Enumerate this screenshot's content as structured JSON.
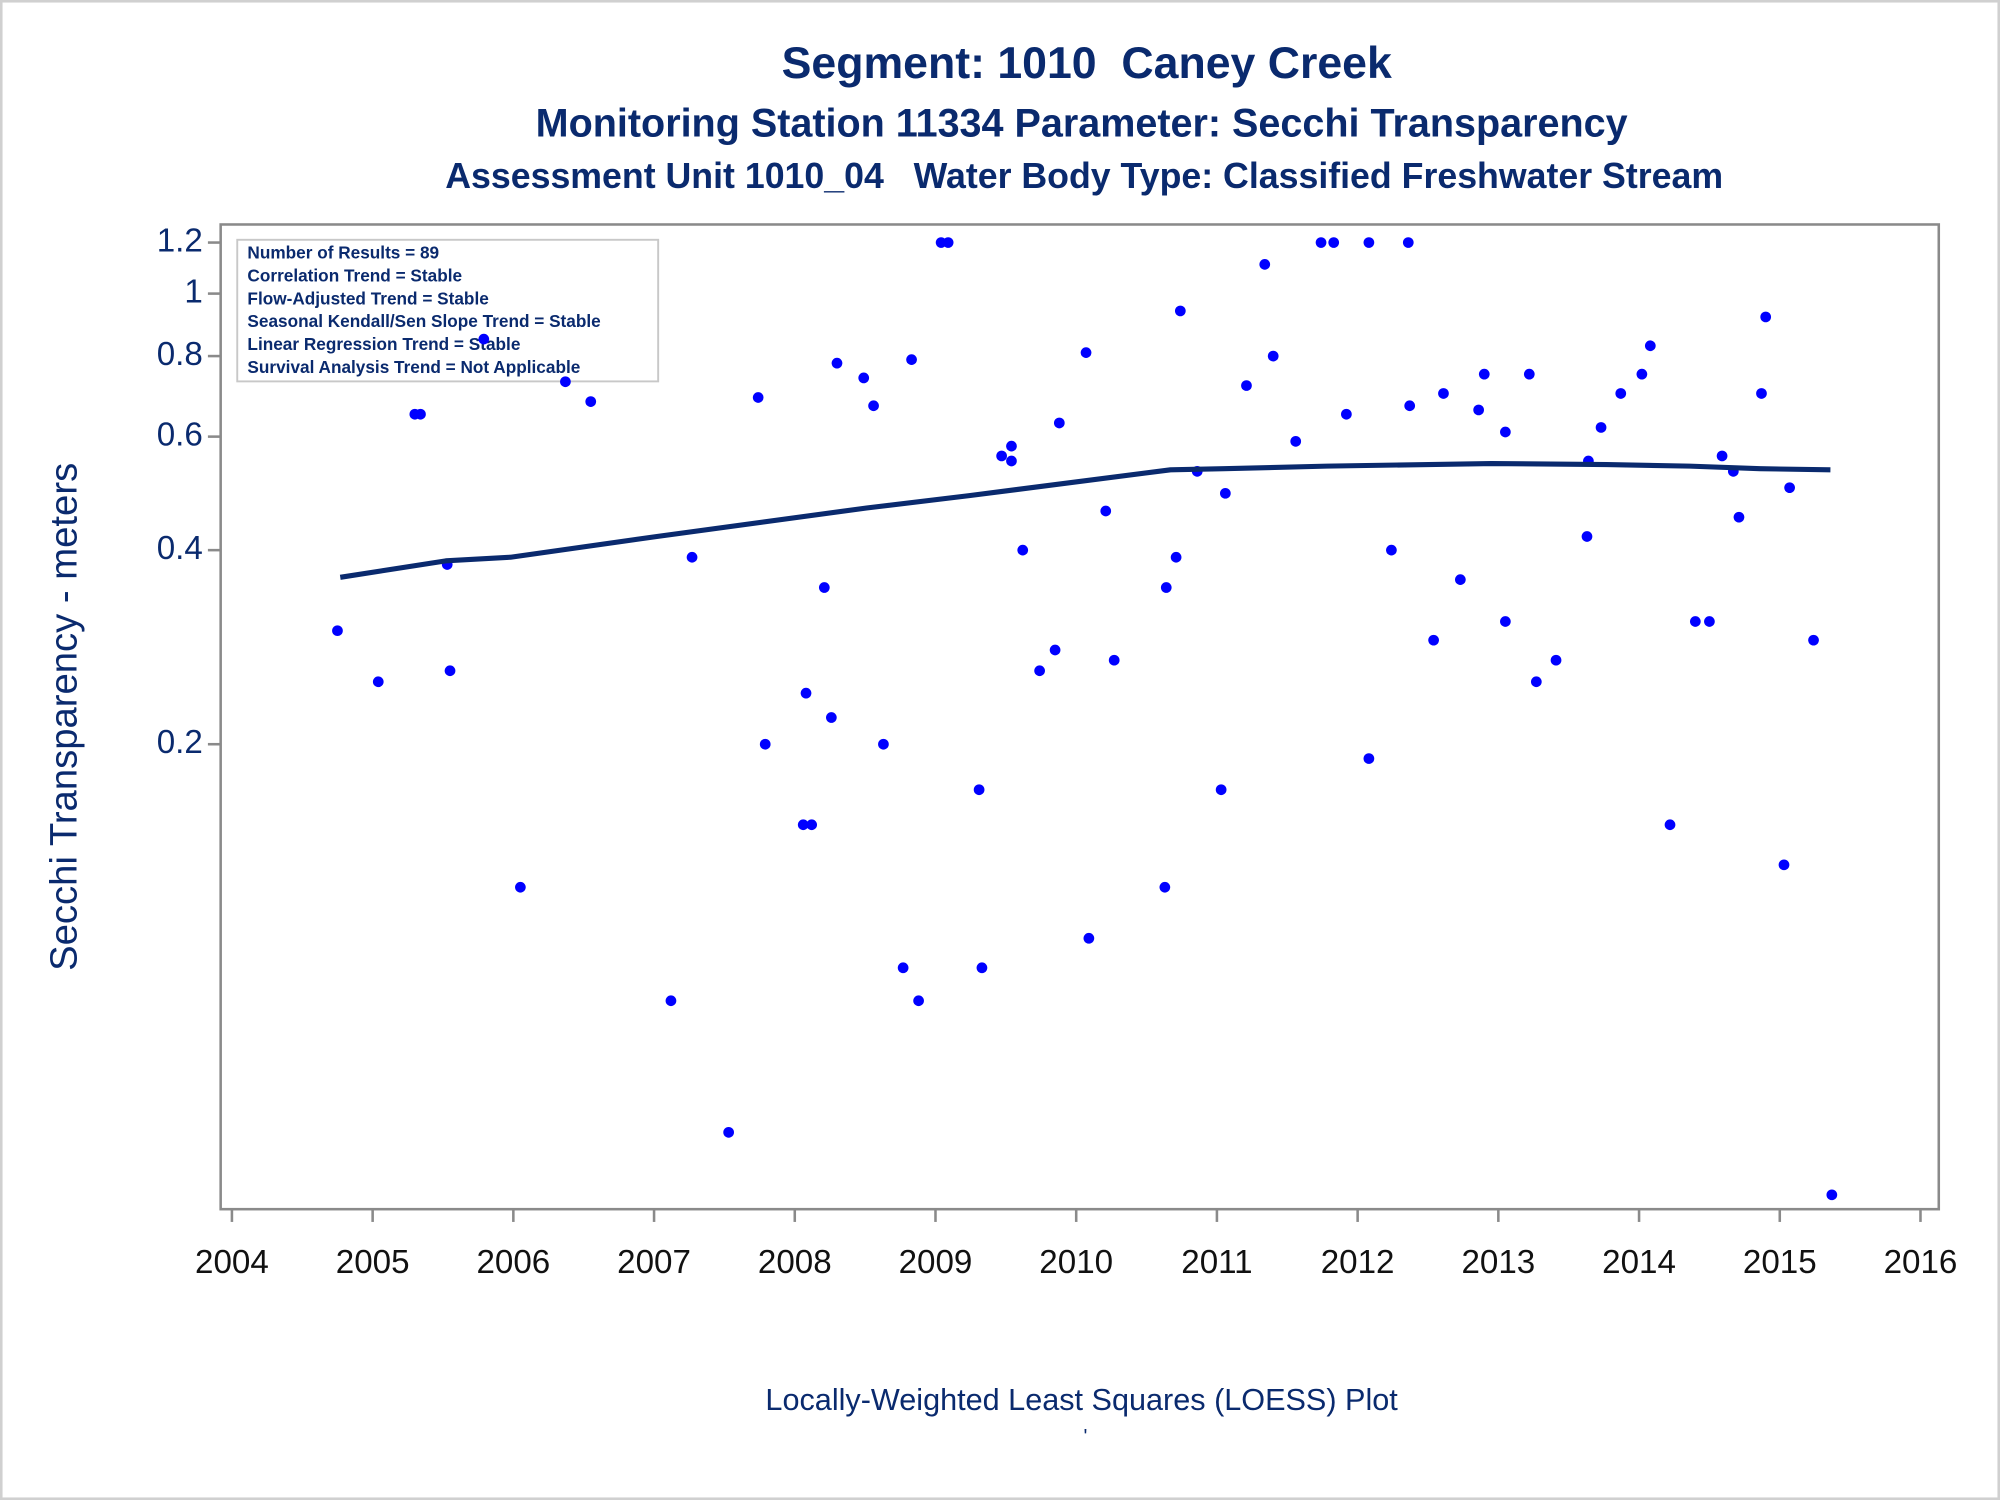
{
  "chart_data": {
    "type": "scatter",
    "title": "Segment: 1010  Caney Creek",
    "subtitles": [
      "Monitoring Station 11334 Parameter: Secchi Transparency",
      "Assessment Unit 1010_04   Water Body Type: Classified Freshwater Stream"
    ],
    "y_label": "Secchi Transparency - meters",
    "footnote": "Locally-Weighted Least Squares (LOESS) Plot",
    "footnote_mark": "'",
    "stats_box": [
      "Number of Results = 89",
      "Correlation Trend = Stable",
      "Flow-Adjusted Trend = Stable",
      "Seasonal Kendall/Sen Slope Trend = Stable",
      "Linear Regression Trend = Stable",
      "Survival Analysis Trend = Not Applicable"
    ],
    "y_log": true,
    "xlim": [
      2003.92,
      2016.13
    ],
    "xticks": [
      2004,
      2005,
      2006,
      2007,
      2008,
      2009,
      2010,
      2011,
      2012,
      2013,
      2014,
      2015,
      2016
    ],
    "ylim": [
      0.038,
      1.28
    ],
    "yticks": [
      0.2,
      0.4,
      0.6,
      0.8,
      1,
      1.2
    ],
    "series": [
      {
        "type": "scatter",
        "color": "#0000ff",
        "x": [
          2004.75,
          2005.04,
          2005.3,
          2005.34,
          2005.53,
          2005.55,
          2005.79,
          2006.05,
          2006.37,
          2006.55,
          2007.12,
          2007.27,
          2007.53,
          2007.74,
          2007.79,
          2008.06,
          2008.12,
          2008.08,
          2008.21,
          2008.26,
          2008.3,
          2008.49,
          2008.56,
          2008.63,
          2008.77,
          2008.83,
          2008.88,
          2009.04,
          2009.09,
          2009.31,
          2009.33,
          2009.47,
          2009.54,
          2009.54,
          2009.62,
          2009.74,
          2009.85,
          2009.88,
          2010.07,
          2010.09,
          2010.21,
          2010.27,
          2010.63,
          2010.64,
          2010.71,
          2010.74,
          2010.86,
          2011.03,
          2011.06,
          2011.21,
          2011.34,
          2011.4,
          2011.56,
          2011.74,
          2011.83,
          2011.92,
          2012.08,
          2012.08,
          2012.24,
          2012.36,
          2012.37,
          2012.54,
          2012.61,
          2012.73,
          2012.86,
          2012.9,
          2013.05,
          2013.05,
          2013.22,
          2013.27,
          2013.41,
          2013.63,
          2013.64,
          2013.73,
          2013.87,
          2014.02,
          2014.08,
          2014.22,
          2014.4,
          2014.5,
          2014.59,
          2014.67,
          2014.71,
          2014.87,
          2014.9,
          2015.03,
          2015.07,
          2015.24,
          2015.37
        ],
        "values": [
          0.3,
          0.25,
          0.65,
          0.65,
          0.38,
          0.26,
          0.85,
          0.12,
          0.73,
          0.68,
          0.08,
          0.39,
          0.05,
          0.69,
          0.2,
          0.15,
          0.15,
          0.24,
          0.35,
          0.22,
          0.78,
          0.74,
          0.67,
          0.2,
          0.09,
          0.79,
          0.08,
          1.2,
          1.2,
          0.17,
          0.09,
          0.56,
          0.58,
          0.55,
          0.4,
          0.26,
          0.28,
          0.63,
          0.81,
          0.1,
          0.46,
          0.27,
          0.12,
          0.35,
          0.39,
          0.94,
          0.53,
          0.17,
          0.49,
          0.72,
          1.11,
          0.8,
          0.59,
          1.2,
          1.2,
          0.65,
          1.2,
          0.19,
          0.4,
          1.2,
          0.67,
          0.29,
          0.7,
          0.36,
          0.66,
          0.75,
          0.31,
          0.61,
          0.75,
          0.25,
          0.27,
          0.42,
          0.55,
          0.62,
          0.7,
          0.75,
          0.83,
          0.15,
          0.31,
          0.31,
          0.56,
          0.53,
          0.45,
          0.7,
          0.92,
          0.13,
          0.5,
          0.29,
          0.04
        ]
      },
      {
        "type": "line",
        "color": "#0a2a6e",
        "x": [
          2004.77,
          2005.52,
          2005.98,
          2007.02,
          2008.51,
          2009.24,
          2010.67,
          2011.05,
          2011.78,
          2012.95,
          2013.77,
          2014.36,
          2014.86,
          2015.36
        ],
        "values": [
          0.363,
          0.385,
          0.39,
          0.42,
          0.465,
          0.486,
          0.533,
          0.535,
          0.54,
          0.545,
          0.543,
          0.54,
          0.535,
          0.533
        ]
      }
    ]
  }
}
